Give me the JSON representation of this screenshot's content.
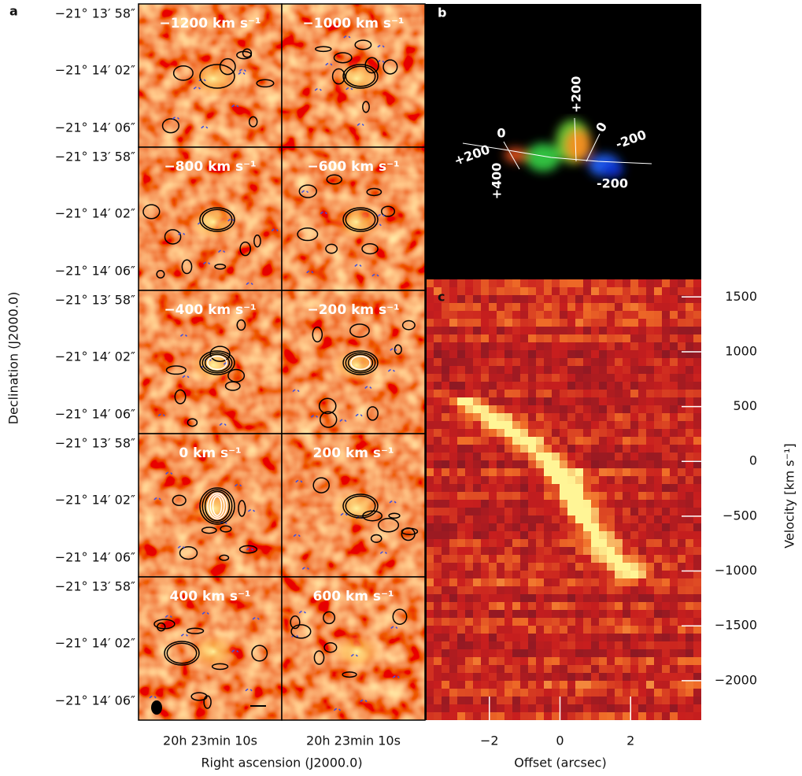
{
  "chart_data": [
    {
      "type": "channel-maps",
      "panel_label": "a",
      "ylabel": "Declination (J2000.0)",
      "xlabel": "Right ascension (J2000.0)",
      "ytick_labels": [
        "−21° 13′ 58″",
        "−21° 14′ 02″",
        "−21° 14′ 06″"
      ],
      "xtick_label": "20h 23min 10s",
      "channels": [
        "−1200 km s⁻¹",
        "−1000 km s⁻¹",
        "−800 km s⁻¹",
        "−600 km s⁻¹",
        "−400 km s⁻¹",
        "−200 km s⁻¹",
        "0 km s⁻¹",
        "200 km s⁻¹",
        "400 km s⁻¹",
        "600 km s⁻¹"
      ]
    },
    {
      "type": "image",
      "panel_label": "b",
      "annotations": [
        "+200",
        "0",
        "-200",
        "-200",
        "0",
        "+200",
        "+400"
      ]
    },
    {
      "type": "pv-diagram",
      "panel_label": "c",
      "xlabel": "Offset (arcsec)",
      "ylabel": "Velocity [km s⁻¹]",
      "xlim": [
        -3.8,
        4.0
      ],
      "xticks": [
        {
          "value": -2,
          "label": "−2"
        },
        0,
        2
      ],
      "ylim": [
        -2360,
        1660
      ],
      "yticks": [
        1500,
        1000,
        500,
        0,
        {
          "value": -500,
          "label": "−500"
        },
        {
          "value": -1000,
          "label": "−1000"
        },
        {
          "value": -1500,
          "label": "−1500"
        },
        {
          "value": -2000,
          "label": "−2000"
        }
      ]
    }
  ]
}
